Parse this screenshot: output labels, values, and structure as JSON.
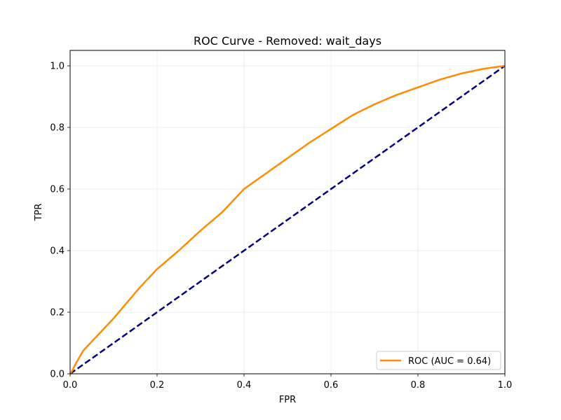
{
  "chart_data": {
    "type": "line",
    "title": "ROC Curve - Removed: wait_days",
    "xlabel": "FPR",
    "ylabel": "TPR",
    "xlim": [
      0.0,
      1.0
    ],
    "ylim": [
      0.0,
      1.05
    ],
    "xticks": [
      0.0,
      0.2,
      0.4,
      0.6,
      0.8,
      1.0
    ],
    "yticks": [
      0.0,
      0.2,
      0.4,
      0.6,
      0.8,
      1.0
    ],
    "xtick_labels": [
      "0.0",
      "0.2",
      "0.4",
      "0.6",
      "0.8",
      "1.0"
    ],
    "ytick_labels": [
      "0.0",
      "0.2",
      "0.4",
      "0.6",
      "0.8",
      "1.0"
    ],
    "grid": true,
    "legend": "lower-right",
    "series": [
      {
        "name": "ROC (AUC = 0.64)",
        "color": "#ff8c00",
        "style": "solid",
        "x": [
          0.0,
          0.005,
          0.01,
          0.02,
          0.03,
          0.05,
          0.07,
          0.1,
          0.13,
          0.16,
          0.2,
          0.25,
          0.3,
          0.35,
          0.4,
          0.45,
          0.5,
          0.55,
          0.6,
          0.65,
          0.7,
          0.75,
          0.8,
          0.85,
          0.9,
          0.95,
          1.0
        ],
        "y": [
          0.0,
          0.01,
          0.025,
          0.05,
          0.075,
          0.105,
          0.135,
          0.18,
          0.23,
          0.28,
          0.34,
          0.4,
          0.465,
          0.525,
          0.6,
          0.65,
          0.7,
          0.75,
          0.795,
          0.84,
          0.875,
          0.905,
          0.93,
          0.955,
          0.975,
          0.99,
          1.0
        ]
      },
      {
        "name": "",
        "color": "#000080",
        "style": "dashed",
        "x": [
          0.0,
          1.0
        ],
        "y": [
          0.0,
          1.0
        ]
      }
    ]
  }
}
